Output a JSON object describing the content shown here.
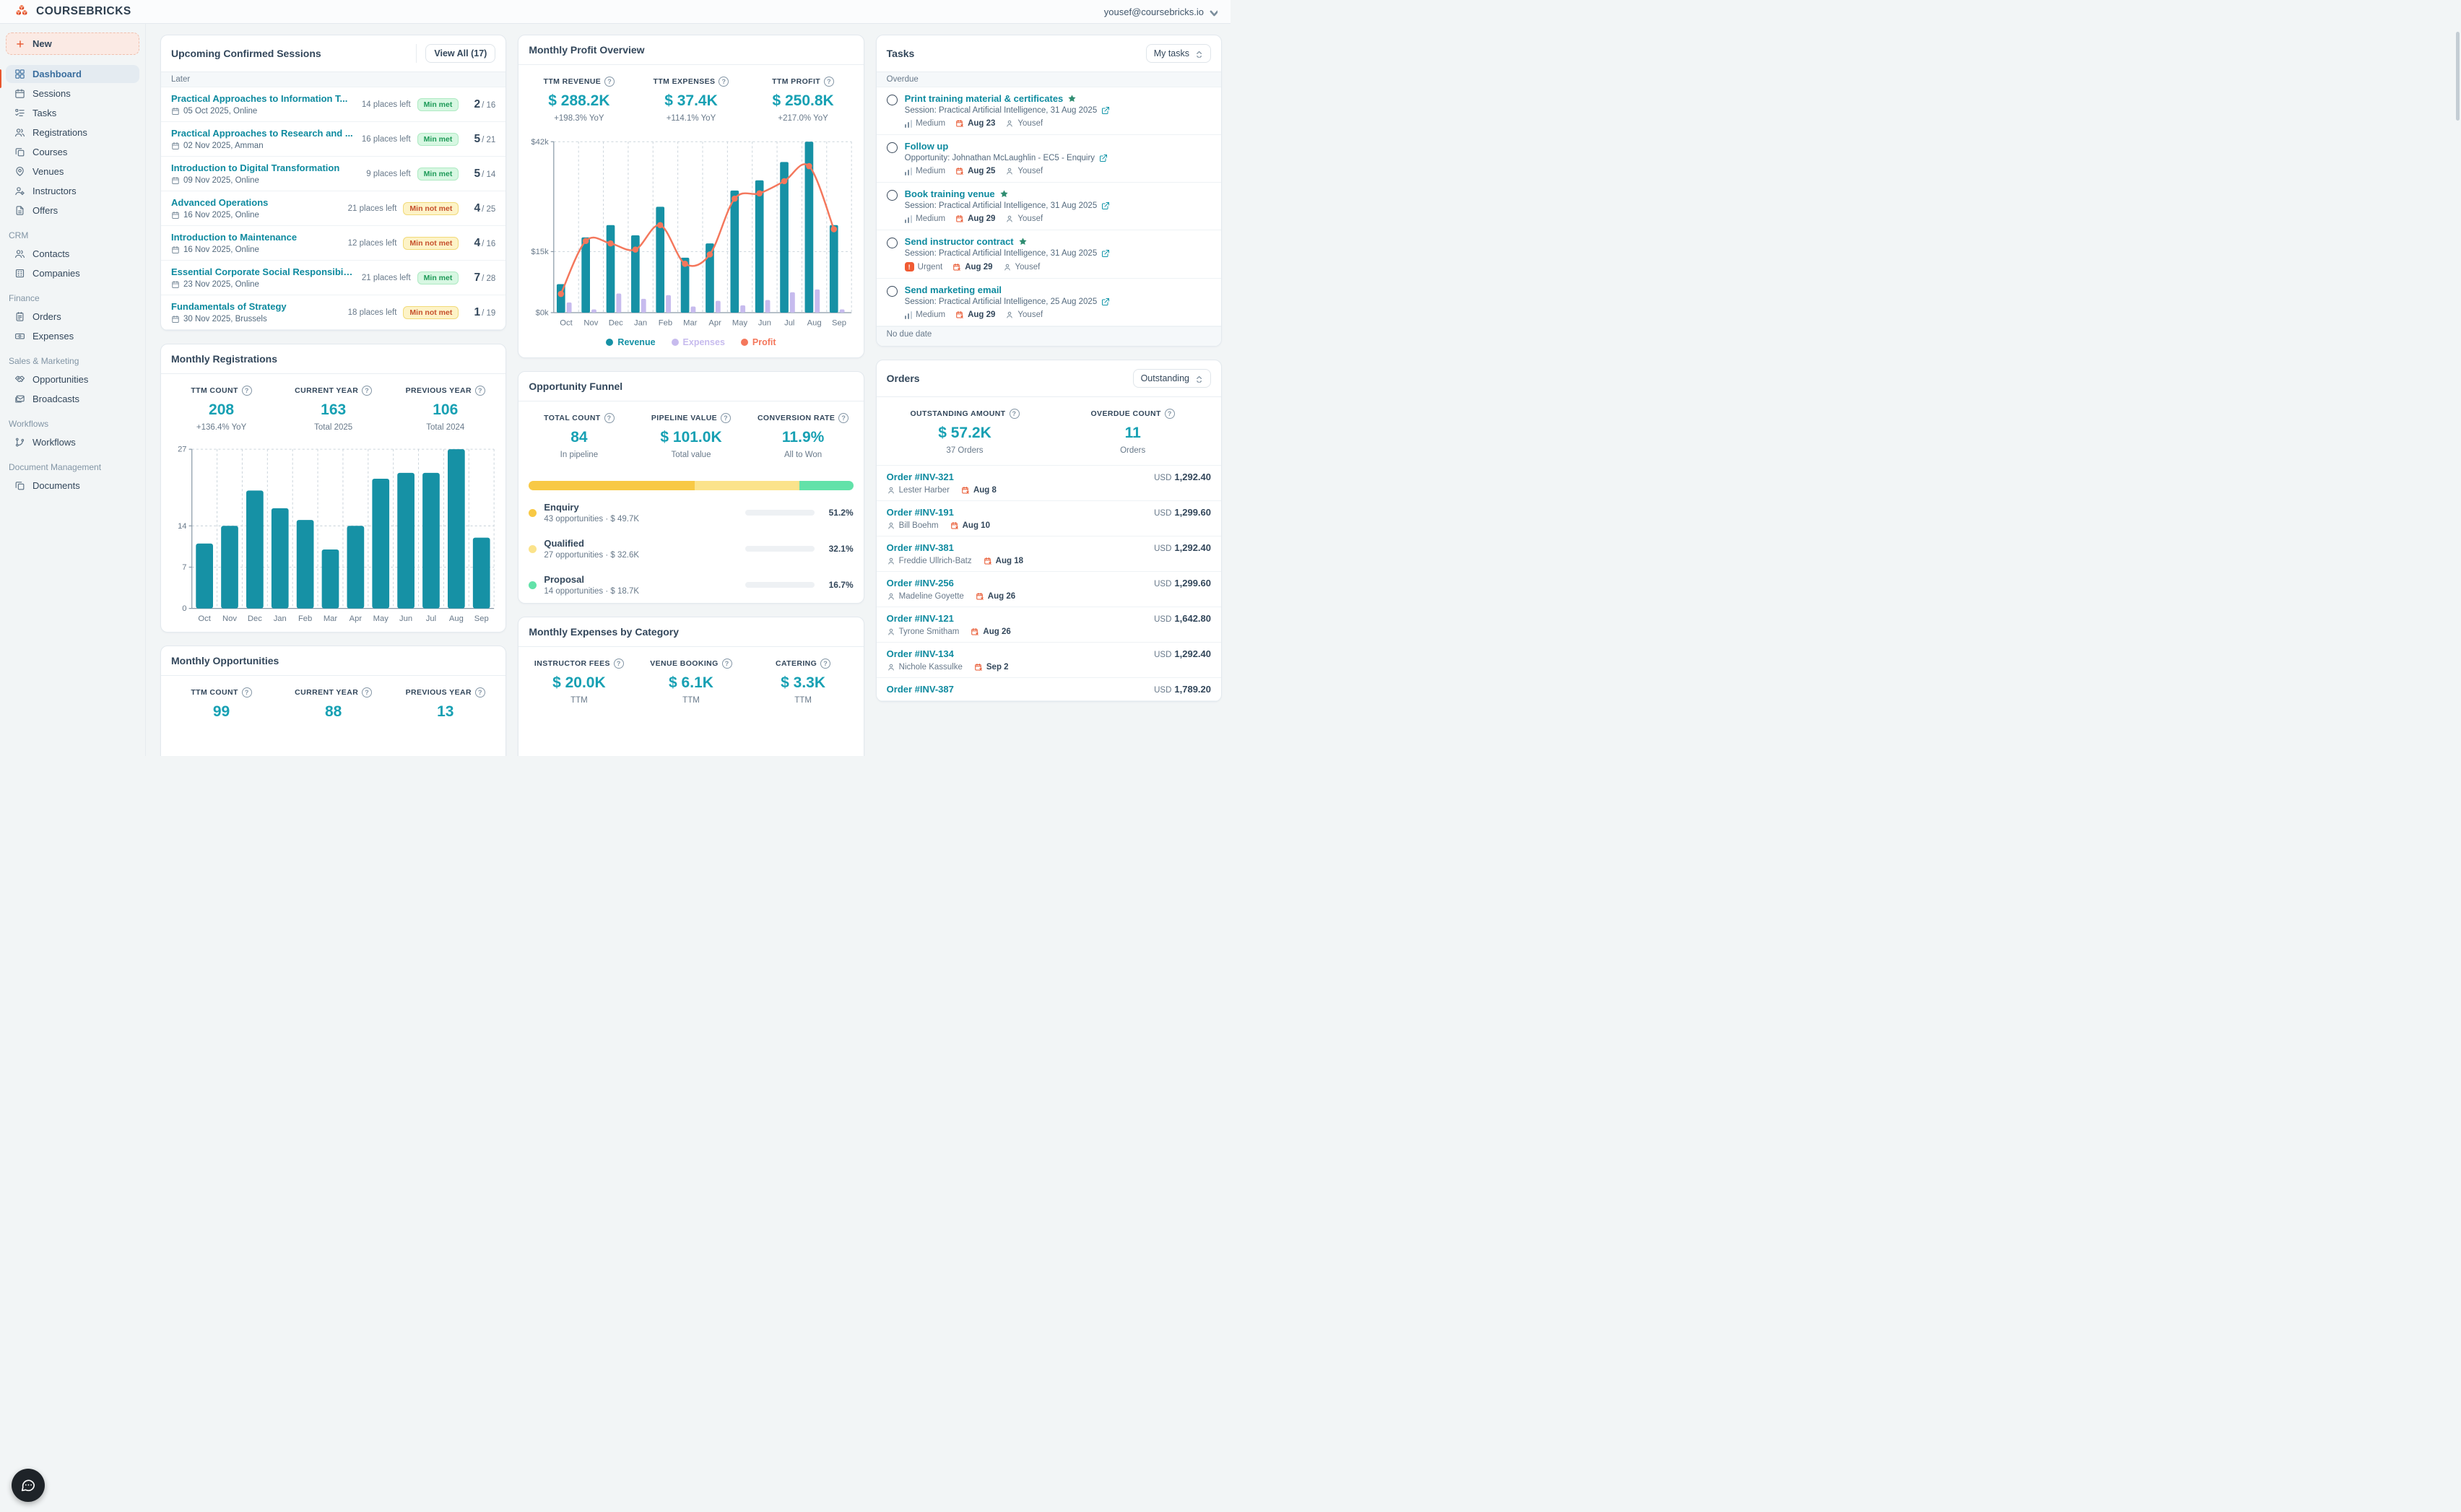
{
  "header": {
    "brand": "COURSEBRICKS",
    "account_email": "yousef@coursebricks.io"
  },
  "sidebar": {
    "new_label": "New",
    "items": [
      {
        "label": "Dashboard",
        "icon": "dashboard",
        "state": "active"
      },
      {
        "label": "Sessions",
        "icon": "sessions"
      },
      {
        "label": "Tasks",
        "icon": "tasks"
      },
      {
        "label": "Registrations",
        "icon": "registrations"
      },
      {
        "label": "Courses",
        "icon": "courses"
      },
      {
        "label": "Venues",
        "icon": "venues"
      },
      {
        "label": "Instructors",
        "icon": "instructors"
      },
      {
        "label": "Offers",
        "icon": "offers"
      }
    ],
    "sections": [
      {
        "title": "CRM",
        "items": [
          {
            "label": "Contacts",
            "icon": "contacts"
          },
          {
            "label": "Companies",
            "icon": "companies"
          }
        ]
      },
      {
        "title": "Finance",
        "items": [
          {
            "label": "Orders",
            "icon": "orders"
          },
          {
            "label": "Expenses",
            "icon": "expenses"
          }
        ]
      },
      {
        "title": "Sales & Marketing",
        "items": [
          {
            "label": "Opportunities",
            "icon": "opportunities"
          },
          {
            "label": "Broadcasts",
            "icon": "broadcasts"
          }
        ]
      },
      {
        "title": "Workflows",
        "items": [
          {
            "label": "Workflows",
            "icon": "workflows"
          }
        ]
      },
      {
        "title": "Document Management",
        "items": [
          {
            "label": "Documents",
            "icon": "documents"
          }
        ]
      }
    ]
  },
  "sessions_card": {
    "title": "Upcoming Confirmed Sessions",
    "view_all_label": "View All (17)",
    "group_label": "Later",
    "rows": [
      {
        "title": "Practical Approaches to Information T...",
        "date": "05 Oct 2025, Online",
        "places": "14 places left",
        "badge": "Min met",
        "badge_type": "met",
        "count": "2",
        "total": "/ 16"
      },
      {
        "title": "Practical Approaches to Research and ...",
        "date": "02 Nov 2025, Amman",
        "places": "16 places left",
        "badge": "Min met",
        "badge_type": "met",
        "count": "5",
        "total": "/ 21"
      },
      {
        "title": "Introduction to Digital Transformation",
        "date": "09 Nov 2025, Online",
        "places": "9 places left",
        "badge": "Min met",
        "badge_type": "met",
        "count": "5",
        "total": "/ 14"
      },
      {
        "title": "Advanced Operations",
        "date": "16 Nov 2025, Online",
        "places": "21 places left",
        "badge": "Min not met",
        "badge_type": "notmet",
        "count": "4",
        "total": "/ 25"
      },
      {
        "title": "Introduction to Maintenance",
        "date": "16 Nov 2025, Online",
        "places": "12 places left",
        "badge": "Min not met",
        "badge_type": "notmet",
        "count": "4",
        "total": "/ 16"
      },
      {
        "title": "Essential Corporate Social Responsibili...",
        "date": "23 Nov 2025, Online",
        "places": "21 places left",
        "badge": "Min met",
        "badge_type": "met",
        "count": "7",
        "total": "/ 28"
      },
      {
        "title": "Fundamentals of Strategy",
        "date": "30 Nov 2025, Brussels",
        "places": "18 places left",
        "badge": "Min not met",
        "badge_type": "notmet",
        "count": "1",
        "total": "/ 19"
      }
    ]
  },
  "registrations_card": {
    "title": "Monthly Registrations",
    "stats": [
      {
        "label": "TTM COUNT",
        "value": "208",
        "sub": "+136.4% YoY"
      },
      {
        "label": "CURRENT YEAR",
        "value": "163",
        "sub": "Total 2025"
      },
      {
        "label": "PREVIOUS YEAR",
        "value": "106",
        "sub": "Total 2024"
      }
    ]
  },
  "opportunities_card": {
    "title": "Monthly Opportunities",
    "stats": [
      {
        "label": "TTM COUNT",
        "value": "99"
      },
      {
        "label": "CURRENT YEAR",
        "value": "88"
      },
      {
        "label": "PREVIOUS YEAR",
        "value": "13"
      }
    ]
  },
  "profit_card": {
    "title": "Monthly Profit Overview",
    "stats": [
      {
        "label": "TTM REVENUE",
        "value": "$ 288.2K",
        "sub": "+198.3% YoY"
      },
      {
        "label": "TTM EXPENSES",
        "value": "$ 37.4K",
        "sub": "+114.1% YoY"
      },
      {
        "label": "TTM PROFIT",
        "value": "$ 250.8K",
        "sub": "+217.0% YoY"
      }
    ],
    "legend": [
      {
        "label": "Revenue",
        "color": "#1691a5"
      },
      {
        "label": "Expenses",
        "color": "#c7bbee"
      },
      {
        "label": "Profit",
        "color": "#f4775c"
      }
    ]
  },
  "funnel_card": {
    "title": "Opportunity Funnel",
    "stats": [
      {
        "label": "TOTAL COUNT",
        "value": "84",
        "sub": "In pipeline"
      },
      {
        "label": "PIPELINE VALUE",
        "value": "$ 101.0K",
        "sub": "Total value"
      },
      {
        "label": "CONVERSION RATE",
        "value": "11.9%",
        "sub": "All to Won"
      }
    ],
    "stages": [
      {
        "label": "Enquiry",
        "detail": "43 opportunities · $ 49.7K",
        "pct": "51.2%",
        "pct_value": 51.2,
        "color": "#f8c945"
      },
      {
        "label": "Qualified",
        "detail": "27 opportunities · $ 32.6K",
        "pct": "32.1%",
        "pct_value": 32.1,
        "color": "#fbe38b"
      },
      {
        "label": "Proposal",
        "detail": "14 opportunities · $ 18.7K",
        "pct": "16.7%",
        "pct_value": 16.7,
        "color": "#62e2a9"
      }
    ]
  },
  "expenses_card": {
    "title": "Monthly Expenses by Category",
    "stats": [
      {
        "label": "INSTRUCTOR FEES",
        "value": "$ 20.0K",
        "sub": "TTM"
      },
      {
        "label": "VENUE BOOKING",
        "value": "$ 6.1K",
        "sub": "TTM"
      },
      {
        "label": "CATERING",
        "value": "$ 3.3K",
        "sub": "TTM"
      }
    ]
  },
  "tasks_card": {
    "title": "Tasks",
    "filter_value": "My tasks",
    "group_overdue": "Overdue",
    "group_no_due": "No due date",
    "rows": [
      {
        "title": "Print training material & certificates",
        "starred": true,
        "context": "Session: Practical Artificial Intelligence, 31 Aug 2025",
        "priority": "Medium",
        "is_medium": true,
        "due": "Aug 23",
        "assignee": "Yousef"
      },
      {
        "title": "Follow up",
        "context": "Opportunity: Johnathan McLaughlin - EC5 - Enquiry",
        "priority": "Medium",
        "is_medium": true,
        "due": "Aug 25",
        "assignee": "Yousef"
      },
      {
        "title": "Book training venue",
        "starred": true,
        "context": "Session: Practical Artificial Intelligence, 31 Aug 2025",
        "priority": "Medium",
        "is_medium": true,
        "due": "Aug 29",
        "assignee": "Yousef"
      },
      {
        "title": "Send instructor contract",
        "starred": true,
        "context": "Session: Practical Artificial Intelligence, 31 Aug 2025",
        "priority": "Urgent",
        "is_urgent": true,
        "due": "Aug 29",
        "assignee": "Yousef"
      },
      {
        "title": "Send marketing email",
        "context": "Session: Practical Artificial Intelligence, 25 Aug 2025",
        "priority": "Medium",
        "is_medium": true,
        "due": "Aug 29",
        "assignee": "Yousef"
      }
    ]
  },
  "orders_card": {
    "title": "Orders",
    "filter_value": "Outstanding",
    "stats": [
      {
        "label": "OUTSTANDING AMOUNT",
        "value": "$ 57.2K",
        "sub": "37 Orders"
      },
      {
        "label": "OVERDUE COUNT",
        "value": "11",
        "sub": "Orders"
      }
    ],
    "rows": [
      {
        "title": "Order #INV-321",
        "customer": "Lester Harber",
        "due": "Aug 8",
        "currency": "USD",
        "amount": "1,292.40"
      },
      {
        "title": "Order #INV-191",
        "customer": "Bill Boehm",
        "due": "Aug 10",
        "currency": "USD",
        "amount": "1,299.60"
      },
      {
        "title": "Order #INV-381",
        "customer": "Freddie Ullrich-Batz",
        "due": "Aug 18",
        "currency": "USD",
        "amount": "1,292.40"
      },
      {
        "title": "Order #INV-256",
        "customer": "Madeline Goyette",
        "due": "Aug 26",
        "currency": "USD",
        "amount": "1,299.60"
      },
      {
        "title": "Order #INV-121",
        "customer": "Tyrone Smitham",
        "due": "Aug 26",
        "currency": "USD",
        "amount": "1,642.80"
      },
      {
        "title": "Order #INV-134",
        "customer": "Nichole Kassulke",
        "due": "Sep 2",
        "currency": "USD",
        "amount": "1,292.40"
      },
      {
        "title": "Order #INV-387",
        "currency": "USD",
        "amount": "1,789.20"
      }
    ]
  },
  "chart_data": [
    {
      "type": "combo",
      "title": "Monthly Profit Overview",
      "x": [
        "Oct",
        "Nov",
        "Dec",
        "Jan",
        "Feb",
        "Mar",
        "Apr",
        "May",
        "Jun",
        "Jul",
        "Aug",
        "Sep"
      ],
      "ylim": [
        0,
        42
      ],
      "yticks": [
        {
          "v": 0,
          "label": "$0k"
        },
        {
          "v": 15,
          "label": "$15k"
        },
        {
          "v": 42,
          "label": "$42k"
        }
      ],
      "series": [
        {
          "name": "Revenue",
          "kind": "bar",
          "color": "#1691a5",
          "values": [
            7,
            18.5,
            21.5,
            19,
            26,
            13.5,
            17,
            30,
            32.5,
            37,
            42,
            21.5
          ]
        },
        {
          "name": "Expenses",
          "kind": "bar",
          "color": "#c7bbee",
          "values": [
            2.5,
            0.8,
            4.7,
            3.4,
            4.3,
            1.5,
            2.9,
            1.8,
            3.1,
            5,
            5.7,
            0.8
          ]
        },
        {
          "name": "Profit",
          "kind": "line",
          "color": "#f4775c",
          "values": [
            4.6,
            17.6,
            17,
            15.5,
            21.5,
            12,
            14.3,
            28,
            29.3,
            32.3,
            36,
            20.5
          ]
        }
      ],
      "grid": true,
      "legend_position": "bottom"
    },
    {
      "type": "bar",
      "title": "Monthly Registrations",
      "x": [
        "Oct",
        "Nov",
        "Dec",
        "Jan",
        "Feb",
        "Mar",
        "Apr",
        "May",
        "Jun",
        "Jul",
        "Aug",
        "Sep"
      ],
      "ylim": [
        0,
        27
      ],
      "yticks": [
        {
          "v": 0,
          "label": "0"
        },
        {
          "v": 7,
          "label": "7"
        },
        {
          "v": 14,
          "label": "14"
        },
        {
          "v": 27,
          "label": "27"
        }
      ],
      "color": "#1691a5",
      "values": [
        11,
        14,
        20,
        17,
        15,
        10,
        14,
        22,
        23,
        23,
        27,
        12
      ],
      "grid": true
    }
  ]
}
